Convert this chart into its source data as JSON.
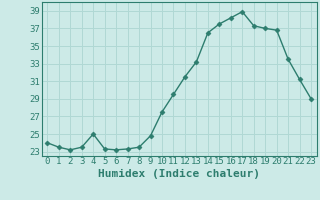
{
  "x": [
    0,
    1,
    2,
    3,
    4,
    5,
    6,
    7,
    8,
    9,
    10,
    11,
    12,
    13,
    14,
    15,
    16,
    17,
    18,
    19,
    20,
    21,
    22,
    23
  ],
  "y": [
    24.0,
    23.5,
    23.2,
    23.5,
    25.0,
    23.3,
    23.2,
    23.3,
    23.5,
    24.8,
    27.5,
    29.5,
    31.5,
    33.2,
    36.5,
    37.5,
    38.2,
    38.9,
    37.3,
    37.0,
    36.8,
    33.5,
    31.2,
    29.0
  ],
  "xlabel": "Humidex (Indice chaleur)",
  "ylim": [
    22.5,
    40
  ],
  "xlim": [
    -0.5,
    23.5
  ],
  "yticks": [
    23,
    25,
    27,
    29,
    31,
    33,
    35,
    37,
    39
  ],
  "xticks": [
    0,
    1,
    2,
    3,
    4,
    5,
    6,
    7,
    8,
    9,
    10,
    11,
    12,
    13,
    14,
    15,
    16,
    17,
    18,
    19,
    20,
    21,
    22,
    23
  ],
  "line_color": "#2d7d6e",
  "marker": "D",
  "marker_size": 2.5,
  "bg_color": "#cceae7",
  "grid_color": "#b0d8d4",
  "axes_color": "#2d7d6e",
  "tick_label_fontsize": 6.5,
  "xlabel_fontsize": 8,
  "tick_color": "#2d7d6e"
}
